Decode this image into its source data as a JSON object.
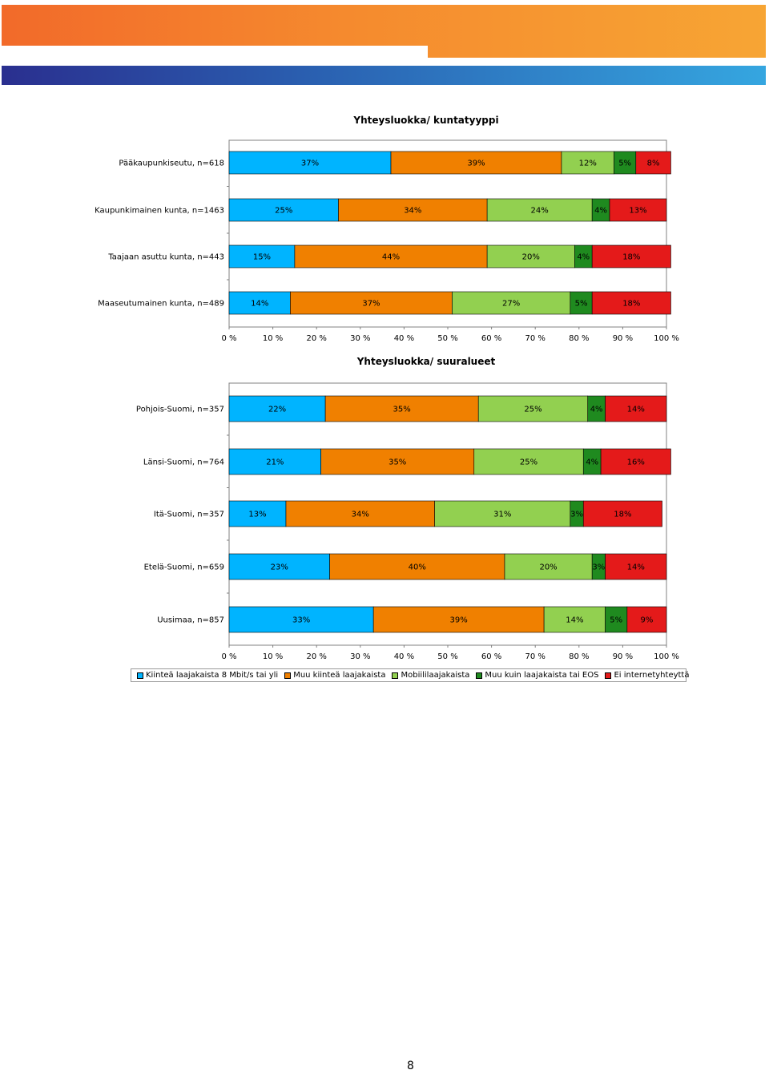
{
  "page_number": "8",
  "colors": {
    "series": [
      "#00b4ff",
      "#f08000",
      "#92d050",
      "#1f8a1f",
      "#e41a1a"
    ]
  },
  "chart_data": [
    {
      "type": "bar",
      "orientation": "horizontal-stacked-100",
      "title": "Yhteysluokka/ kuntatyyppi",
      "categories": [
        "Pääkaupunkiseutu, n=618",
        "Kaupunkimainen kunta, n=1463",
        "Taajaan asuttu kunta, n=443",
        "Maaseutumainen kunta, n=489"
      ],
      "series": [
        {
          "name": "Kiinteä laajakaista 8 Mbit/s tai yli",
          "values": [
            37,
            25,
            15,
            14
          ],
          "labels": [
            "37%",
            "25%",
            "15%",
            "14%"
          ]
        },
        {
          "name": "Muu kiinteä laajakaista",
          "values": [
            39,
            34,
            44,
            37
          ],
          "labels": [
            "39%",
            "34%",
            "44%",
            "37%"
          ]
        },
        {
          "name": "Mobiililaajakaista",
          "values": [
            12,
            24,
            20,
            27
          ],
          "labels": [
            "12%",
            "24%",
            "20%",
            "27%"
          ]
        },
        {
          "name": "Muu kuin laajakaista tai EOS",
          "values": [
            5,
            4,
            4,
            5
          ],
          "labels": [
            "5%",
            "4%",
            "4%",
            "5%"
          ]
        },
        {
          "name": "Ei internetyhteyttä",
          "values": [
            8,
            13,
            18,
            18
          ],
          "labels": [
            "8%",
            "13%",
            "18%",
            "18%"
          ]
        }
      ],
      "xlim": [
        0,
        100
      ],
      "xticks": [
        "0 %",
        "10 %",
        "20 %",
        "30 %",
        "40 %",
        "50 %",
        "60 %",
        "70 %",
        "80 %",
        "90 %",
        "100 %"
      ]
    },
    {
      "type": "bar",
      "orientation": "horizontal-stacked-100",
      "title": "Yhteysluokka/ suuralueet",
      "categories": [
        "Pohjois-Suomi, n=357",
        "Länsi-Suomi, n=764",
        "Itä-Suomi, n=357",
        "Etelä-Suomi, n=659",
        "Uusimaa, n=857"
      ],
      "series": [
        {
          "name": "Kiinteä laajakaista 8 Mbit/s tai yli",
          "values": [
            22,
            21,
            13,
            23,
            33
          ],
          "labels": [
            "22%",
            "21%",
            "13%",
            "23%",
            "33%"
          ]
        },
        {
          "name": "Muu kiinteä laajakaista",
          "values": [
            35,
            35,
            34,
            40,
            39
          ],
          "labels": [
            "35%",
            "35%",
            "34%",
            "40%",
            "39%"
          ]
        },
        {
          "name": "Mobiililaajakaista",
          "values": [
            25,
            25,
            31,
            20,
            14
          ],
          "labels": [
            "25%",
            "25%",
            "31%",
            "20%",
            "14%"
          ]
        },
        {
          "name": "Muu kuin laajakaista tai EOS",
          "values": [
            4,
            4,
            3,
            3,
            5
          ],
          "labels": [
            "4%",
            "4%",
            "3%",
            "3%",
            "5%"
          ]
        },
        {
          "name": "Ei internetyhteyttä",
          "values": [
            14,
            16,
            18,
            14,
            9
          ],
          "labels": [
            "14%",
            "16%",
            "18%",
            "14%",
            "9%"
          ]
        }
      ],
      "xlim": [
        0,
        100
      ],
      "xticks": [
        "0 %",
        "10 %",
        "20 %",
        "30 %",
        "40 %",
        "50 %",
        "60 %",
        "70 %",
        "80 %",
        "90 %",
        "100 %"
      ]
    }
  ],
  "legend": {
    "items": [
      "Kiinteä laajakaista 8 Mbit/s tai yli",
      "Muu kiinteä laajakaista",
      "Mobiililaajakaista",
      "Muu kuin laajakaista tai EOS",
      "Ei internetyhteyttä"
    ]
  }
}
